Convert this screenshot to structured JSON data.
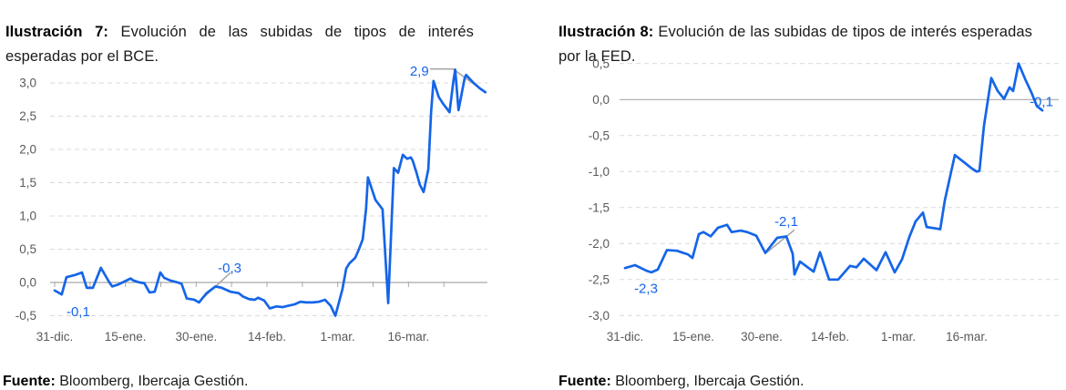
{
  "panels": [
    {
      "title_prefix": "Ilustración 7:",
      "title_rest": " Evolución de las subidas de tipos de interés esperadas por el BCE.",
      "source_prefix": "Fuente:",
      "source_rest": " Bloomberg, Ibercaja Gestión."
    },
    {
      "title_prefix": "Ilustración 8:",
      "title_rest": " Evolución de las subidas de tipos de interés esperadas por la FED.",
      "source_prefix": "Fuente:",
      "source_rest": " Bloomberg, Ibercaja Gestión."
    }
  ],
  "colors": {
    "line": "#1565E8",
    "grid": "#D9D9D9",
    "zero_axis": "#A9A9A9",
    "axis_text": "#5A5A5A",
    "annotation_text": "#1565E8",
    "callout": "#A8A8A8"
  },
  "chart_data": [
    {
      "type": "line",
      "title": "Evolución de las subidas de tipos de interés esperadas por el BCE",
      "source": "Bloomberg, Ibercaja Gestión",
      "grid": "horizontal-dashed",
      "legend": "none",
      "ylim": [
        -0.6,
        3.35
      ],
      "xlim_days": [
        -0.5,
        92.5
      ],
      "y_ticks": {
        "labels": [
          "3,0",
          "2,5",
          "2,0",
          "1,5",
          "1,0",
          "0,5",
          "0,0",
          "-0,5"
        ],
        "values": [
          3.0,
          2.5,
          2.0,
          1.5,
          1.0,
          0.5,
          0.0,
          -0.5
        ]
      },
      "x_ticks": {
        "labels": [
          "31-dic.",
          "15-ene.",
          "30-ene.",
          "14-feb.",
          "1-mar.",
          "16-mar."
        ],
        "days": [
          0,
          15,
          30,
          45,
          60,
          75
        ]
      },
      "series": [
        {
          "name": "subidas-esperadas-bce",
          "points": [
            [
              0,
              -0.12
            ],
            [
              1.5,
              -0.18
            ],
            [
              2.5,
              0.08
            ],
            [
              4.2,
              0.11
            ],
            [
              5.8,
              0.15
            ],
            [
              6.8,
              -0.08
            ],
            [
              8.1,
              -0.08
            ],
            [
              9.8,
              0.22
            ],
            [
              11.6,
              0.0
            ],
            [
              12.2,
              -0.06
            ],
            [
              13.5,
              -0.03
            ],
            [
              16.1,
              0.06
            ],
            [
              16.7,
              0.03
            ],
            [
              18.0,
              0.0
            ],
            [
              19.0,
              -0.01
            ],
            [
              20.1,
              -0.15
            ],
            [
              21.2,
              -0.14
            ],
            [
              22.4,
              0.15
            ],
            [
              23.2,
              0.07
            ],
            [
              24.5,
              0.03
            ],
            [
              26.1,
              0.0
            ],
            [
              26.9,
              -0.02
            ],
            [
              28.0,
              -0.24
            ],
            [
              29.6,
              -0.26
            ],
            [
              30.6,
              -0.3
            ],
            [
              32.2,
              -0.16
            ],
            [
              34.1,
              -0.06
            ],
            [
              35.4,
              -0.08
            ],
            [
              37.3,
              -0.14
            ],
            [
              39.0,
              -0.16
            ],
            [
              39.9,
              -0.21
            ],
            [
              41.2,
              -0.25
            ],
            [
              42.4,
              -0.26
            ],
            [
              43.1,
              -0.23
            ],
            [
              44.4,
              -0.27
            ],
            [
              45.6,
              -0.39
            ],
            [
              47.0,
              -0.36
            ],
            [
              48.3,
              -0.37
            ],
            [
              49.5,
              -0.35
            ],
            [
              50.8,
              -0.33
            ],
            [
              52.1,
              -0.29
            ],
            [
              53.3,
              -0.3
            ],
            [
              54.7,
              -0.3
            ],
            [
              56.0,
              -0.29
            ],
            [
              57.3,
              -0.26
            ],
            [
              58.5,
              -0.35
            ],
            [
              59.5,
              -0.5
            ],
            [
              61.0,
              -0.1
            ],
            [
              61.8,
              0.21
            ],
            [
              62.5,
              0.29
            ],
            [
              63.7,
              0.37
            ],
            [
              64.5,
              0.5
            ],
            [
              65.3,
              0.65
            ],
            [
              66.0,
              1.1
            ],
            [
              66.4,
              1.58
            ],
            [
              68.0,
              1.24
            ],
            [
              69.5,
              1.1
            ],
            [
              70.7,
              -0.31
            ],
            [
              71.9,
              1.72
            ],
            [
              72.8,
              1.65
            ],
            [
              73.8,
              1.92
            ],
            [
              74.7,
              1.86
            ],
            [
              75.5,
              1.88
            ],
            [
              75.9,
              1.83
            ],
            [
              76.7,
              1.65
            ],
            [
              77.4,
              1.47
            ],
            [
              78.2,
              1.36
            ],
            [
              79.2,
              1.7
            ],
            [
              79.8,
              2.57
            ],
            [
              80.3,
              3.03
            ],
            [
              81.4,
              2.79
            ],
            [
              82.4,
              2.68
            ],
            [
              83.7,
              2.56
            ],
            [
              84.5,
              3.02
            ],
            [
              84.9,
              3.2
            ],
            [
              85.6,
              2.59
            ],
            [
              86.9,
              3.07
            ],
            [
              87.2,
              3.12
            ],
            [
              88.8,
              3.0
            ],
            [
              90.1,
              2.92
            ],
            [
              91.3,
              2.86
            ]
          ]
        }
      ],
      "annotations": [
        {
          "text": "-0,1",
          "day": 5.0,
          "value": -0.44
        },
        {
          "text": "-0,3",
          "day": 37.1,
          "value": 0.22,
          "callout": [
            [
              37.3,
              0.15
            ],
            [
              30.6,
              -0.29
            ]
          ]
        },
        {
          "text": "2,9",
          "day": 77.3,
          "value": 3.18,
          "callout": [
            [
              79.6,
              3.21
            ],
            [
              84.4,
              3.21
            ],
            [
              91.3,
              2.86
            ]
          ]
        }
      ]
    },
    {
      "type": "line",
      "title": "Evolución de las subidas de tipos de interés esperadas por la FED",
      "source": "Bloomberg, Ibercaja Gestión",
      "grid": "horizontal-dashed",
      "legend": "none",
      "ylim": [
        -3.1,
        0.55
      ],
      "xlim_days": [
        -3,
        92.5
      ],
      "y_ticks": {
        "labels": [
          "0,5",
          "0,0",
          "-0,5",
          "-1,0",
          "-1,5",
          "-2,0",
          "-2,5",
          "-3,0"
        ],
        "values": [
          0.5,
          0.0,
          -0.5,
          -1.0,
          -1.5,
          -2.0,
          -2.5,
          -3.0
        ]
      },
      "x_ticks": {
        "labels": [
          "31-dic.",
          "15-ene.",
          "30-ene.",
          "14-feb.",
          "1-mar.",
          "16-mar."
        ],
        "days": [
          0,
          15,
          30,
          45,
          60,
          75
        ]
      },
      "series": [
        {
          "name": "subidas-esperadas-fed",
          "points": [
            [
              0,
              -2.34
            ],
            [
              2.2,
              -2.3
            ],
            [
              4.8,
              -2.38
            ],
            [
              5.8,
              -2.4
            ],
            [
              7.2,
              -2.36
            ],
            [
              9.2,
              -2.09
            ],
            [
              11.4,
              -2.1
            ],
            [
              12.8,
              -2.13
            ],
            [
              13.8,
              -2.15
            ],
            [
              14.8,
              -2.2
            ],
            [
              16.2,
              -1.87
            ],
            [
              17.2,
              -1.84
            ],
            [
              18.8,
              -1.9
            ],
            [
              20.4,
              -1.78
            ],
            [
              22.4,
              -1.74
            ],
            [
              23.4,
              -1.84
            ],
            [
              25.4,
              -1.82
            ],
            [
              26.8,
              -1.84
            ],
            [
              28.8,
              -1.89
            ],
            [
              30.8,
              -2.13
            ],
            [
              33.4,
              -1.92
            ],
            [
              35.4,
              -1.9
            ],
            [
              36.8,
              -2.14
            ],
            [
              37.2,
              -2.43
            ],
            [
              38.4,
              -2.25
            ],
            [
              41.4,
              -2.39
            ],
            [
              42.8,
              -2.12
            ],
            [
              44.8,
              -2.5
            ],
            [
              46.8,
              -2.5
            ],
            [
              49.4,
              -2.31
            ],
            [
              50.8,
              -2.33
            ],
            [
              52.4,
              -2.21
            ],
            [
              55.2,
              -2.37
            ],
            [
              57.2,
              -2.12
            ],
            [
              59.2,
              -2.4
            ],
            [
              60.8,
              -2.22
            ],
            [
              62.4,
              -1.91
            ],
            [
              63.8,
              -1.69
            ],
            [
              65.4,
              -1.57
            ],
            [
              66.2,
              -1.77
            ],
            [
              68.2,
              -1.79
            ],
            [
              69.2,
              -1.8
            ],
            [
              70.2,
              -1.4
            ],
            [
              72.4,
              -0.77
            ],
            [
              74.8,
              -0.89
            ],
            [
              76.2,
              -0.96
            ],
            [
              77.2,
              -1.0
            ],
            [
              77.8,
              -0.99
            ],
            [
              78.8,
              -0.36
            ],
            [
              80.4,
              0.3
            ],
            [
              81.8,
              0.12
            ],
            [
              83.2,
              0.01
            ],
            [
              84.4,
              0.17
            ],
            [
              85.2,
              0.12
            ],
            [
              86.4,
              0.5
            ],
            [
              87.8,
              0.29
            ],
            [
              89.2,
              0.1
            ],
            [
              90.4,
              -0.09
            ],
            [
              91.6,
              -0.15
            ]
          ]
        }
      ],
      "annotations": [
        {
          "text": "-2,3",
          "day": 4.6,
          "value": -2.62
        },
        {
          "text": "-2,1",
          "day": 35.4,
          "value": -1.69,
          "callout": [
            [
              37.2,
              -1.81
            ],
            [
              31.2,
              -2.12
            ]
          ]
        },
        {
          "text": "-0,1",
          "day": 91.4,
          "value": -0.03
        }
      ]
    }
  ]
}
